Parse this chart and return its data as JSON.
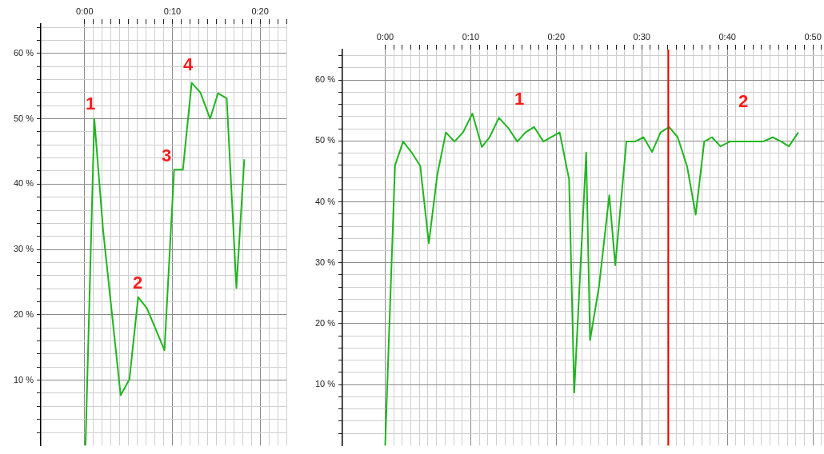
{
  "chart_data": [
    {
      "type": "line",
      "series": [
        {
          "color": "#1fb51f",
          "x": [
            0.1,
            1.1,
            2.1,
            4.1,
            5.1,
            6.1,
            7.1,
            9.1,
            10.2,
            11.2,
            12.2,
            13.2,
            14.3,
            15.2,
            16.2,
            17.3,
            18.2
          ],
          "values": [
            0,
            50,
            33,
            7.7,
            10.1,
            22.7,
            21,
            14.6,
            42.2,
            42.2,
            55.5,
            54,
            50,
            53.9,
            53.1,
            24.1,
            43.8
          ]
        }
      ],
      "xlim": [
        -5,
        23
      ],
      "xticks": [
        {
          "value": 0,
          "label": "0:00"
        },
        {
          "value": 1,
          "label": null
        },
        {
          "value": 2,
          "label": null
        },
        {
          "value": 3,
          "label": null
        },
        {
          "value": 4,
          "label": null
        },
        {
          "value": 5,
          "label": null
        },
        {
          "value": 6,
          "label": null
        },
        {
          "value": 7,
          "label": null
        },
        {
          "value": 8,
          "label": null
        },
        {
          "value": 9,
          "label": null
        },
        {
          "value": 10,
          "label": "0:10"
        },
        {
          "value": 11,
          "label": null
        },
        {
          "value": 12,
          "label": null
        },
        {
          "value": 13,
          "label": null
        },
        {
          "value": 14,
          "label": null
        },
        {
          "value": 15,
          "label": null
        },
        {
          "value": 16,
          "label": null
        },
        {
          "value": 17,
          "label": null
        },
        {
          "value": 18,
          "label": null
        },
        {
          "value": 19,
          "label": null
        },
        {
          "value": 20,
          "label": "0:20"
        },
        {
          "value": 21,
          "label": null
        },
        {
          "value": 22,
          "label": null
        },
        {
          "value": 23,
          "label": null
        }
      ],
      "ylim": [
        0,
        64.5
      ],
      "yticks": [
        {
          "value": 2,
          "label": null
        },
        {
          "value": 4,
          "label": null
        },
        {
          "value": 6,
          "label": null
        },
        {
          "value": 8,
          "label": null
        },
        {
          "value": 10,
          "label": "10 %"
        },
        {
          "value": 12,
          "label": null
        },
        {
          "value": 14,
          "label": null
        },
        {
          "value": 16,
          "label": null
        },
        {
          "value": 18,
          "label": null
        },
        {
          "value": 20,
          "label": "20 %"
        },
        {
          "value": 22,
          "label": null
        },
        {
          "value": 24,
          "label": null
        },
        {
          "value": 26,
          "label": null
        },
        {
          "value": 28,
          "label": null
        },
        {
          "value": 30,
          "label": "30 %"
        },
        {
          "value": 32,
          "label": null
        },
        {
          "value": 34,
          "label": null
        },
        {
          "value": 36,
          "label": null
        },
        {
          "value": 38,
          "label": null
        },
        {
          "value": 40,
          "label": "40 %"
        },
        {
          "value": 42,
          "label": null
        },
        {
          "value": 44,
          "label": null
        },
        {
          "value": 46,
          "label": null
        },
        {
          "value": 48,
          "label": null
        },
        {
          "value": 50,
          "label": "50 %"
        },
        {
          "value": 52,
          "label": null
        },
        {
          "value": 54,
          "label": null
        },
        {
          "value": 56,
          "label": null
        },
        {
          "value": 58,
          "label": null
        },
        {
          "value": 60,
          "label": "60 %"
        },
        {
          "value": 62,
          "label": null
        },
        {
          "value": 64,
          "label": null
        }
      ],
      "grid": true,
      "marker": "none",
      "annotations": [
        "1",
        "2",
        "3",
        "4"
      ]
    },
    {
      "type": "line",
      "series": [
        {
          "color": "#1fb51f",
          "x": [
            0,
            1.15,
            2.1,
            3.1,
            4.1,
            5.1,
            6.1,
            7.1,
            8.1,
            9.1,
            10.2,
            11.3,
            12.2,
            13.3,
            14.35,
            15.45,
            16.4,
            17.4,
            18.5,
            20.4,
            21.5,
            22.1,
            23.5,
            23.95,
            25,
            26.2,
            26.9,
            28.2,
            29.2,
            30.2,
            31.2,
            32.2,
            33.2,
            34.2,
            35.3,
            36.3,
            37.3,
            38.2,
            39.2,
            40.3,
            41.3,
            42.3,
            43.3,
            44.2,
            45.3,
            46.3,
            47.2,
            48.3
          ],
          "values": [
            0,
            46,
            49.9,
            48.1,
            45.9,
            33.2,
            44.5,
            51.4,
            49.9,
            51.4,
            54.5,
            49,
            50.6,
            53.8,
            52.2,
            49.9,
            51.4,
            52.3,
            49.9,
            51.4,
            43.7,
            8.7,
            48.1,
            17.3,
            26.1,
            41.1,
            29.6,
            49.9,
            49.9,
            50.6,
            48.2,
            51.4,
            52.3,
            50.6,
            45.8,
            37.9,
            49.9,
            50.6,
            49.1,
            49.9,
            49.9,
            49.9,
            49.9,
            49.9,
            50.6,
            49.9,
            49.1,
            51.4
          ]
        }
      ],
      "xlim": [
        -5,
        51.3
      ],
      "xticks": [
        {
          "value": 0,
          "label": "0:00"
        },
        {
          "value": 1,
          "label": null
        },
        {
          "value": 2,
          "label": null
        },
        {
          "value": 3,
          "label": null
        },
        {
          "value": 4,
          "label": null
        },
        {
          "value": 5,
          "label": null
        },
        {
          "value": 6,
          "label": null
        },
        {
          "value": 7,
          "label": null
        },
        {
          "value": 8,
          "label": null
        },
        {
          "value": 9,
          "label": null
        },
        {
          "value": 10,
          "label": "0:10"
        },
        {
          "value": 11,
          "label": null
        },
        {
          "value": 12,
          "label": null
        },
        {
          "value": 13,
          "label": null
        },
        {
          "value": 14,
          "label": null
        },
        {
          "value": 15,
          "label": null
        },
        {
          "value": 16,
          "label": null
        },
        {
          "value": 17,
          "label": null
        },
        {
          "value": 18,
          "label": null
        },
        {
          "value": 19,
          "label": null
        },
        {
          "value": 20,
          "label": "0:20"
        },
        {
          "value": 21,
          "label": null
        },
        {
          "value": 22,
          "label": null
        },
        {
          "value": 23,
          "label": null
        },
        {
          "value": 24,
          "label": null
        },
        {
          "value": 25,
          "label": null
        },
        {
          "value": 26,
          "label": null
        },
        {
          "value": 27,
          "label": null
        },
        {
          "value": 28,
          "label": null
        },
        {
          "value": 29,
          "label": null
        },
        {
          "value": 30,
          "label": "0:30"
        },
        {
          "value": 31,
          "label": null
        },
        {
          "value": 32,
          "label": null
        },
        {
          "value": 33,
          "label": null
        },
        {
          "value": 34,
          "label": null
        },
        {
          "value": 35,
          "label": null
        },
        {
          "value": 36,
          "label": null
        },
        {
          "value": 37,
          "label": null
        },
        {
          "value": 38,
          "label": null
        },
        {
          "value": 39,
          "label": null
        },
        {
          "value": 40,
          "label": "0:40"
        },
        {
          "value": 41,
          "label": null
        },
        {
          "value": 42,
          "label": null
        },
        {
          "value": 43,
          "label": null
        },
        {
          "value": 44,
          "label": null
        },
        {
          "value": 45,
          "label": null
        },
        {
          "value": 46,
          "label": null
        },
        {
          "value": 47,
          "label": null
        },
        {
          "value": 48,
          "label": null
        },
        {
          "value": 49,
          "label": null
        },
        {
          "value": 50,
          "label": "0:50"
        },
        {
          "value": 51,
          "label": null
        }
      ],
      "ylim": [
        0,
        65
      ],
      "yticks": [
        {
          "value": 2,
          "label": null
        },
        {
          "value": 4,
          "label": null
        },
        {
          "value": 6,
          "label": null
        },
        {
          "value": 8,
          "label": null
        },
        {
          "value": 10,
          "label": "10 %"
        },
        {
          "value": 12,
          "label": null
        },
        {
          "value": 14,
          "label": null
        },
        {
          "value": 16,
          "label": null
        },
        {
          "value": 18,
          "label": null
        },
        {
          "value": 20,
          "label": "20 %"
        },
        {
          "value": 22,
          "label": null
        },
        {
          "value": 24,
          "label": null
        },
        {
          "value": 26,
          "label": null
        },
        {
          "value": 28,
          "label": null
        },
        {
          "value": 30,
          "label": "30 %"
        },
        {
          "value": 32,
          "label": null
        },
        {
          "value": 34,
          "label": null
        },
        {
          "value": 36,
          "label": null
        },
        {
          "value": 38,
          "label": null
        },
        {
          "value": 40,
          "label": "40 %"
        },
        {
          "value": 42,
          "label": null
        },
        {
          "value": 44,
          "label": null
        },
        {
          "value": 46,
          "label": null
        },
        {
          "value": 48,
          "label": null
        },
        {
          "value": 50,
          "label": "50 %"
        },
        {
          "value": 52,
          "label": null
        },
        {
          "value": 54,
          "label": null
        },
        {
          "value": 56,
          "label": null
        },
        {
          "value": 58,
          "label": null
        },
        {
          "value": 60,
          "label": "60 %"
        },
        {
          "value": 62,
          "label": null
        },
        {
          "value": 64,
          "label": null
        }
      ],
      "grid": true,
      "marker": "none",
      "ref_lines": [
        {
          "axis": "x",
          "value": 33.1,
          "color": "#ff0000"
        }
      ],
      "annotations": [
        "1",
        "2"
      ]
    }
  ]
}
